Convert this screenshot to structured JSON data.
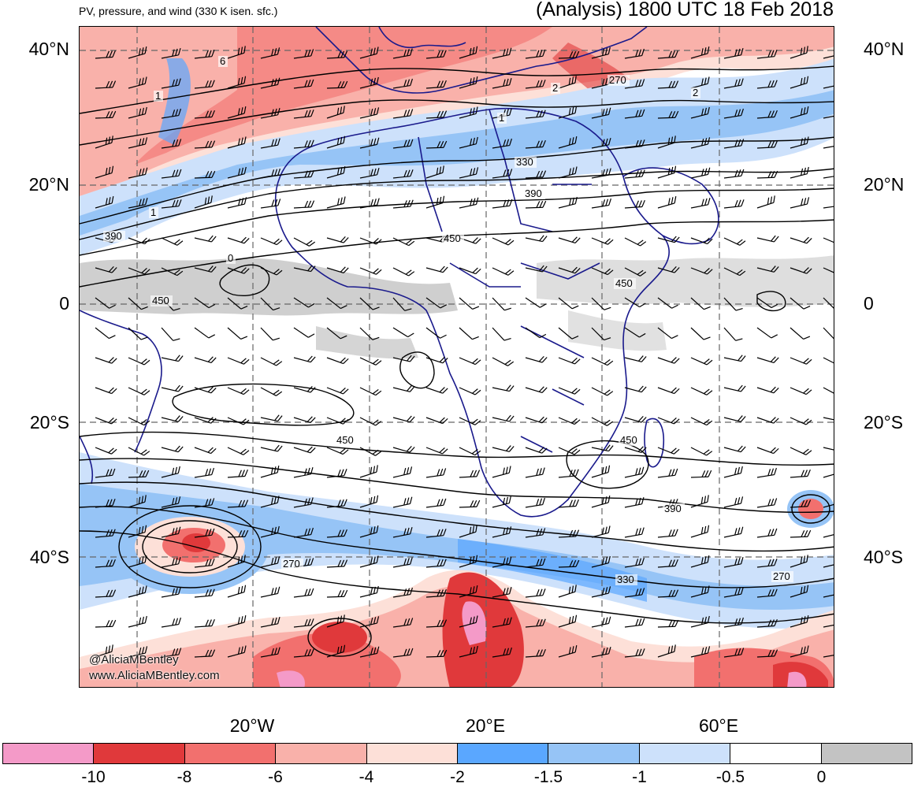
{
  "header": {
    "subtitle": "PV, pressure, and wind (330 K isen. sfc.)",
    "title": "(Analysis) 1800 UTC 18 Feb 2018"
  },
  "axes": {
    "lat_left": [
      "40°N",
      "20°N",
      "0",
      "20°S",
      "40°S"
    ],
    "lat_right": [
      "40°N",
      "20°N",
      "0",
      "20°S",
      "40°S"
    ],
    "lon_bottom": [
      "20°W",
      "20°E",
      "60°E"
    ]
  },
  "contour_labels": [
    "6",
    "1",
    "2",
    "270",
    "2",
    "1",
    "330",
    "390",
    "1",
    "390",
    "450",
    "0",
    "450",
    "450",
    "450",
    "450",
    "390",
    "270",
    "330",
    "270"
  ],
  "credit": {
    "handle": "@AliciaMBentley",
    "site": "www.AliciaMBentley.com"
  },
  "colorbar": {
    "colors": [
      "#f49ac8",
      "#e0393b",
      "#f2706e",
      "#f9b1aa",
      "#fde0d8",
      "#5aa7ff",
      "#96c4f6",
      "#cde1fb",
      "#ffffff",
      "#c3c3c3"
    ],
    "labels": [
      "-10",
      "-8",
      "-6",
      "-4",
      "-2",
      "-1.5",
      "-1",
      "-0.5",
      "0"
    ]
  },
  "icons": [
    "wind-barb-icon"
  ]
}
